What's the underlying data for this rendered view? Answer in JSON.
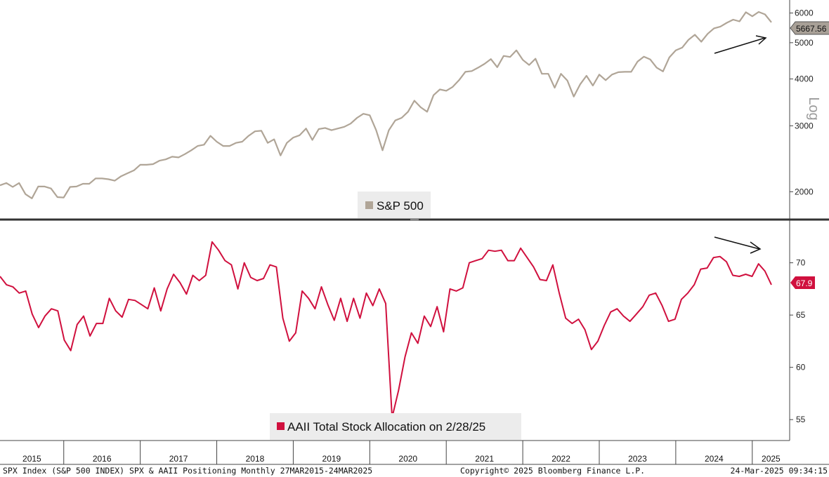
{
  "chart_data": [
    {
      "type": "line",
      "panel": "top",
      "scale": "log",
      "scale_label": "Log",
      "ylim": [
        1700,
        6500
      ],
      "yticks": [
        2000,
        3000,
        4000,
        5000,
        6000
      ],
      "legend": {
        "label": "S&P 500",
        "position": "bottom-center"
      },
      "last_value_label": "5667.56",
      "color": "#b0a597",
      "annotation": "upward arrow near latest values",
      "series": [
        {
          "name": "S&P 500",
          "values": [
            2080,
            2110,
            2060,
            2110,
            1970,
            1920,
            2065,
            2065,
            2040,
            1935,
            1930,
            2060,
            2065,
            2100,
            2100,
            2170,
            2170,
            2160,
            2140,
            2200,
            2240,
            2280,
            2360,
            2360,
            2370,
            2420,
            2440,
            2480,
            2470,
            2520,
            2580,
            2650,
            2670,
            2820,
            2720,
            2650,
            2650,
            2700,
            2720,
            2820,
            2900,
            2910,
            2700,
            2760,
            2500,
            2700,
            2790,
            2830,
            2950,
            2750,
            2940,
            2960,
            2920,
            2950,
            2980,
            3040,
            3150,
            3230,
            3200,
            2920,
            2580,
            2920,
            3100,
            3150,
            3270,
            3500,
            3360,
            3270,
            3620,
            3750,
            3720,
            3810,
            3970,
            4180,
            4200,
            4290,
            4390,
            4520,
            4300,
            4610,
            4580,
            4770,
            4500,
            4360,
            4530,
            4130,
            4130,
            3790,
            4130,
            3960,
            3590,
            3870,
            4080,
            3840,
            4110,
            3970,
            4110,
            4170,
            4180,
            4180,
            4450,
            4590,
            4510,
            4290,
            4190,
            4570,
            4770,
            4850,
            5090,
            5250,
            5030,
            5280,
            5460,
            5520,
            5650,
            5760,
            5700,
            6030,
            5880,
            6040,
            5950,
            5667.56
          ]
        }
      ]
    },
    {
      "type": "line",
      "panel": "bottom",
      "ylim": [
        53,
        74
      ],
      "yticks": [
        55,
        60,
        65,
        70
      ],
      "legend": {
        "label": "AAII Total Stock Allocation on 2/28/25",
        "position": "bottom-center"
      },
      "last_value_label": "67.9",
      "color": "#d0103e",
      "annotation": "downward arrow near latest values",
      "series": [
        {
          "name": "AAII Total Stock Allocation on 2/28/25",
          "values": [
            68.7,
            67.9,
            67.7,
            67.1,
            67.3,
            65.1,
            63.8,
            64.9,
            65.6,
            65.4,
            62.6,
            61.6,
            64.1,
            64.9,
            63.0,
            64.2,
            64.2,
            66.6,
            65.4,
            64.8,
            66.5,
            66.4,
            66.0,
            65.6,
            67.6,
            65.4,
            67.5,
            68.9,
            68.1,
            67.0,
            68.8,
            68.3,
            68.8,
            72.0,
            71.2,
            70.2,
            69.8,
            67.5,
            70.0,
            68.6,
            68.3,
            68.5,
            69.8,
            69.6,
            64.7,
            62.5,
            63.3,
            67.3,
            66.6,
            65.6,
            67.7,
            66.0,
            64.5,
            66.6,
            64.4,
            66.6,
            64.7,
            67.1,
            65.9,
            67.5,
            66.1,
            55.2,
            57.8,
            61.0,
            63.3,
            62.3,
            64.9,
            63.9,
            65.8,
            63.4,
            67.5,
            67.3,
            67.6,
            70.0,
            70.2,
            70.4,
            71.2,
            71.1,
            71.2,
            70.2,
            70.2,
            71.4,
            70.5,
            69.6,
            68.4,
            68.3,
            69.8,
            67.1,
            64.7,
            64.2,
            64.6,
            63.6,
            61.7,
            62.5,
            64.0,
            65.3,
            65.6,
            64.9,
            64.4,
            65.1,
            65.8,
            66.9,
            67.1,
            65.9,
            64.4,
            64.6,
            66.5,
            67.1,
            67.9,
            69.4,
            69.5,
            70.5,
            70.6,
            70.1,
            68.8,
            68.7,
            68.9,
            68.7,
            69.9,
            69.2,
            67.9
          ]
        }
      ]
    }
  ],
  "x_axis": {
    "labels": [
      "2015",
      "2016",
      "2017",
      "2018",
      "2019",
      "2020",
      "2021",
      "2022",
      "2023",
      "2024",
      "2025"
    ]
  },
  "footer": {
    "left": "SPX Index (S&P 500 INDEX) SPX & AAII Positioning  Monthly 27MAR2015-24MAR2025",
    "center": "Copyright© 2025 Bloomberg Finance L.P.",
    "right": "24-Mar-2025 09:34:15"
  }
}
